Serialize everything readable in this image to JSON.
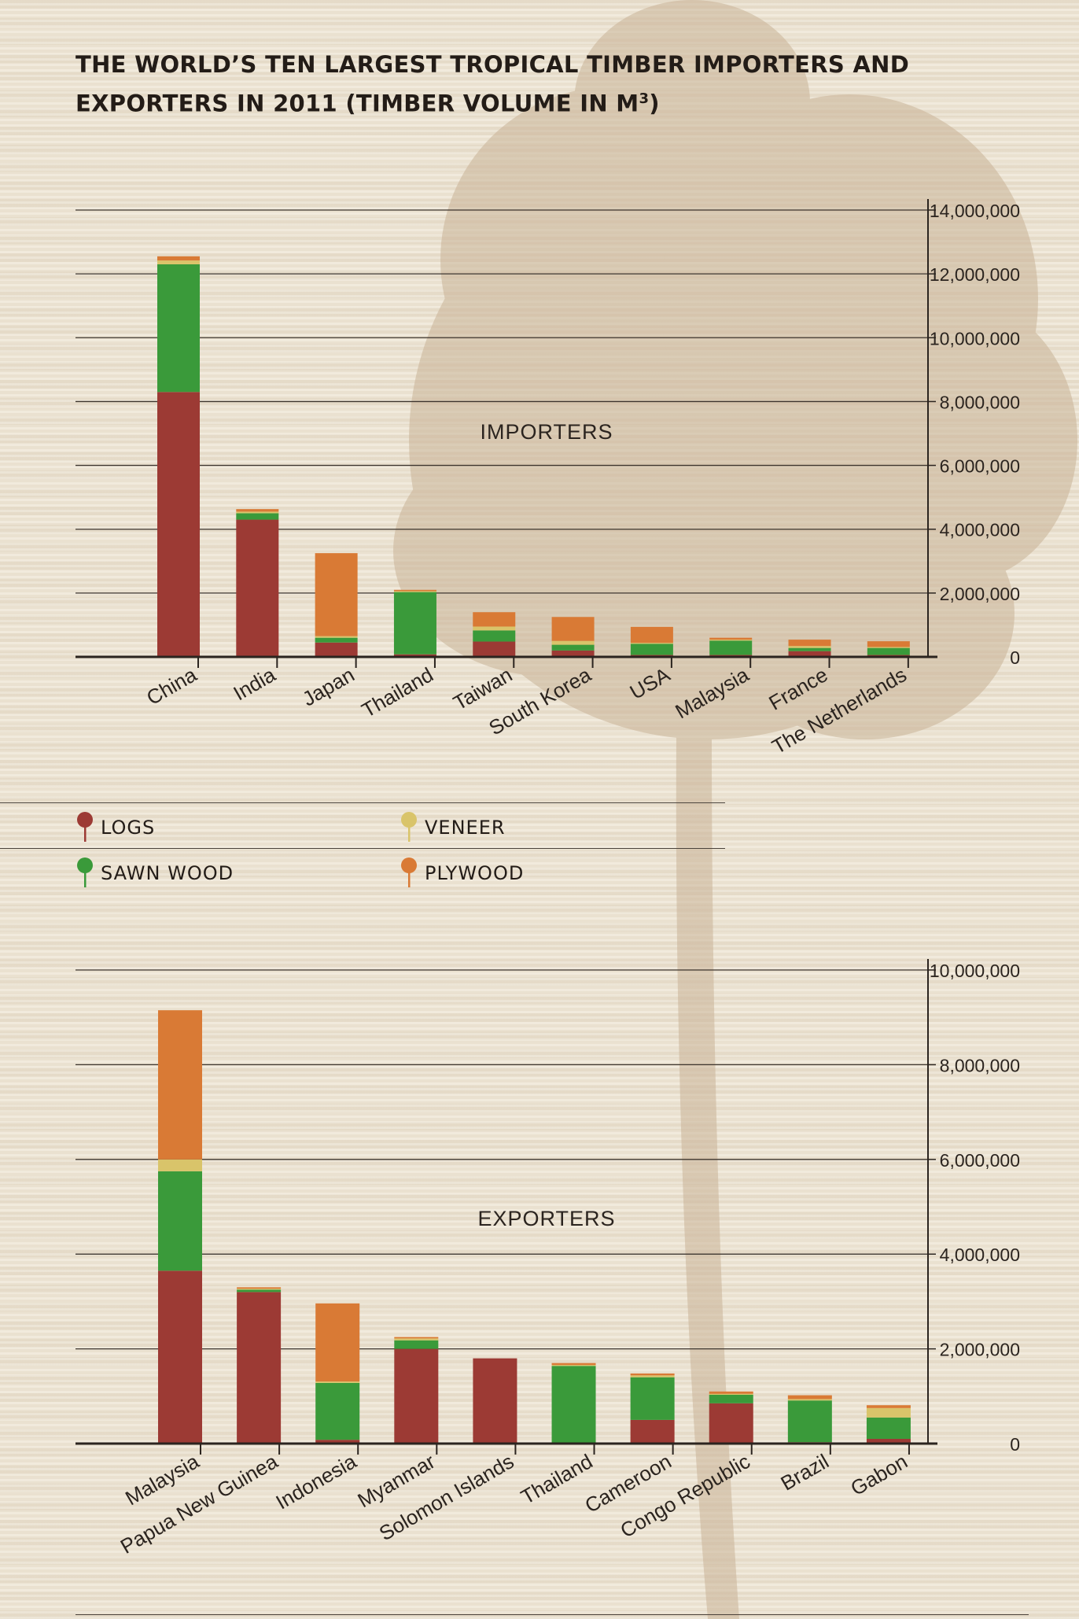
{
  "title_main": "THE WORLD’S TEN LARGEST TROPICAL TIMBER IMPORTERS AND EXPORTERS IN 2011 (TIMBER VOLUME IN M",
  "title_sup": "3",
  "title_end": ")",
  "colors": {
    "logs": "#9c3a34",
    "sawn_wood": "#3a9a3a",
    "veneer": "#d9c46a",
    "plywood": "#d97a35",
    "axis": "#2b241f",
    "grid": "#3c342d",
    "tree": "#c9b397"
  },
  "legend": {
    "logs": "LOGS",
    "sawn_wood": "SAWN WOOD",
    "veneer": "VENEER",
    "plywood": "PLYWOOD"
  },
  "chart_data": [
    {
      "type": "bar",
      "stacked": true,
      "label": "IMPORTERS",
      "categories": [
        "China",
        "India",
        "Japan",
        "Thailand",
        "Taiwan",
        "South Korea",
        "USA",
        "Malaysia",
        "France",
        "The Netherlands"
      ],
      "series": [
        {
          "name": "LOGS",
          "key": "logs",
          "values": [
            8300000,
            4300000,
            450000,
            80000,
            480000,
            200000,
            60000,
            60000,
            180000,
            60000
          ]
        },
        {
          "name": "SAWN WOOD",
          "key": "sawn_wood",
          "values": [
            4000000,
            200000,
            150000,
            1950000,
            350000,
            180000,
            350000,
            450000,
            100000,
            220000
          ]
        },
        {
          "name": "VENEER",
          "key": "veneer",
          "values": [
            120000,
            50000,
            50000,
            30000,
            120000,
            120000,
            30000,
            30000,
            60000,
            30000
          ]
        },
        {
          "name": "PLYWOOD",
          "key": "plywood",
          "values": [
            130000,
            80000,
            2600000,
            40000,
            450000,
            750000,
            500000,
            60000,
            200000,
            180000
          ]
        }
      ],
      "ylim": [
        0,
        14000000
      ],
      "yticks": [
        0,
        2000000,
        4000000,
        6000000,
        8000000,
        10000000,
        12000000,
        14000000
      ],
      "ytick_labels": [
        "0",
        "2,000,000",
        "4,000,000",
        "6,000,000",
        "8,000,000",
        "10,000,000",
        "12,000,000",
        "14,000,000"
      ],
      "y_axis_side": "right",
      "grid": true
    },
    {
      "type": "bar",
      "stacked": true,
      "label": "EXPORTERS",
      "categories": [
        "Malaysia",
        "Papua New Guinea",
        "Indonesia",
        "Myanmar",
        "Solomon Islands",
        "Thailand",
        "Cameroon",
        "Congo Republic",
        "Brazil",
        "Gabon"
      ],
      "series": [
        {
          "name": "LOGS",
          "key": "logs",
          "values": [
            3650000,
            3200000,
            80000,
            2000000,
            1800000,
            20000,
            500000,
            850000,
            30000,
            100000
          ]
        },
        {
          "name": "SAWN WOOD",
          "key": "sawn_wood",
          "values": [
            2100000,
            50000,
            1200000,
            180000,
            0,
            1620000,
            900000,
            180000,
            880000,
            450000
          ]
        },
        {
          "name": "VENEER",
          "key": "veneer",
          "values": [
            250000,
            20000,
            30000,
            40000,
            0,
            20000,
            40000,
            20000,
            30000,
            200000
          ]
        },
        {
          "name": "PLYWOOD",
          "key": "plywood",
          "values": [
            3150000,
            30000,
            1650000,
            30000,
            0,
            40000,
            40000,
            50000,
            80000,
            60000
          ]
        }
      ],
      "ylim": [
        0,
        10000000
      ],
      "yticks": [
        0,
        2000000,
        4000000,
        6000000,
        8000000,
        10000000
      ],
      "ytick_labels": [
        "0",
        "2,000,000",
        "4,000,000",
        "6,000,000",
        "8,000,000",
        "10,000,000"
      ],
      "y_axis_side": "right",
      "grid": true
    }
  ]
}
